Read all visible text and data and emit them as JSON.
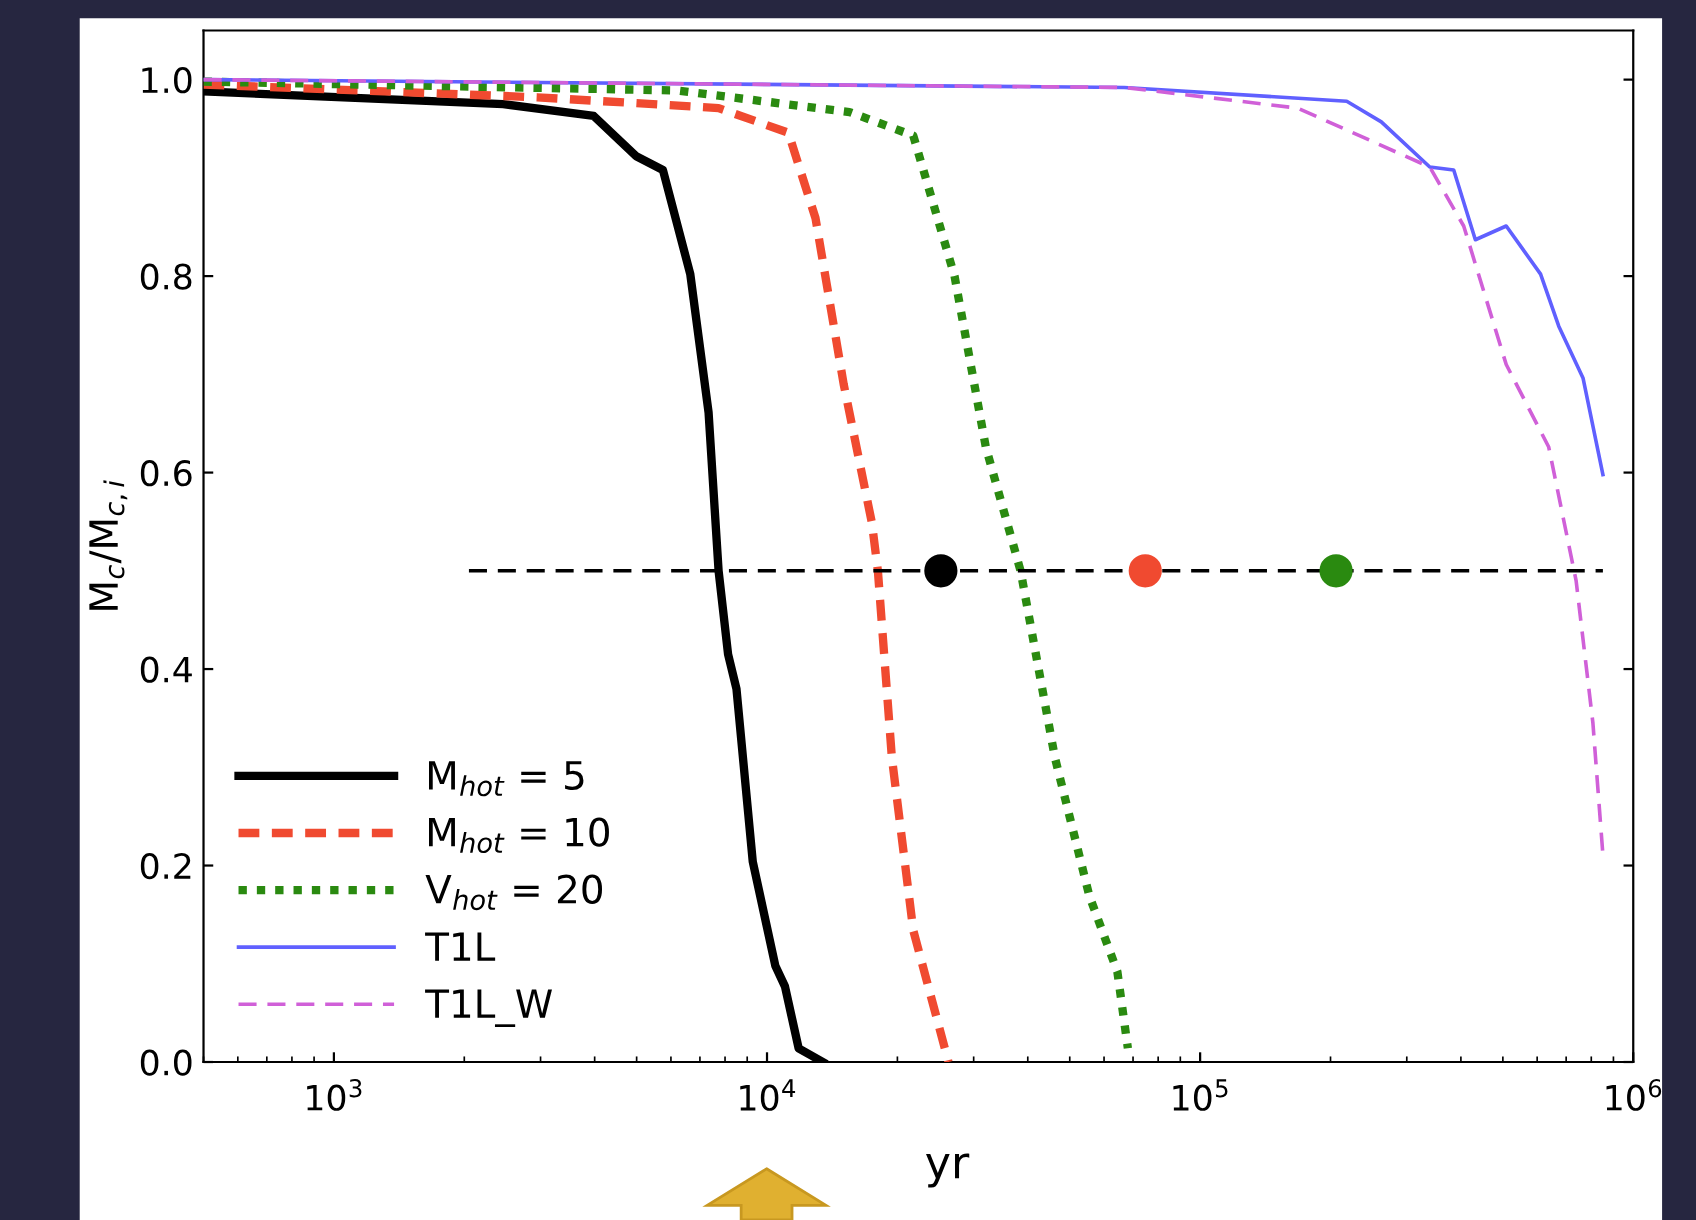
{
  "chart_data": {
    "type": "line",
    "xlabel": "yr",
    "ylabel": "M$_{c}$/M$_{c,i}$",
    "log": "x",
    "xlim": [
      500,
      1000000
    ],
    "ylim": [
      0,
      1.05
    ],
    "xticks": [
      {
        "value": 1000,
        "label": "10$^{3}$"
      },
      {
        "value": 10000,
        "label": "10$^{4}$"
      },
      {
        "value": 100000,
        "label": "10$^{5}$"
      },
      {
        "value": 1000000,
        "label": "10$^{6}$"
      }
    ],
    "yticks": [
      {
        "value": 0,
        "label": "0.0"
      },
      {
        "value": 0.2,
        "label": "0.2"
      },
      {
        "value": 0.4,
        "label": "0.4"
      },
      {
        "value": 0.6,
        "label": "0.6"
      },
      {
        "value": 0.8,
        "label": "0.8"
      },
      {
        "value": 1,
        "label": "1.0"
      }
    ],
    "grid": false,
    "legend": "bottom left",
    "series": [
      {
        "name": "M$_{hot}$ = 5",
        "color": "#000000",
        "line_style": "solid",
        "x": [
          500,
          2460,
          3980,
          4990,
          5750,
          6650,
          7330,
          7730,
          8130,
          8500,
          9270,
          10450,
          11000,
          11830,
          13460
        ],
        "values": [
          0.988,
          0.975,
          0.963,
          0.922,
          0.908,
          0.802,
          0.661,
          0.5,
          0.415,
          0.38,
          0.204,
          0.098,
          0.077,
          0.014,
          0
        ]
      },
      {
        "name": "M$_{hot}$ = 10",
        "color": "#f04a30",
        "line_style": "dashed",
        "x": [
          500,
          2950,
          7730,
          11200,
          12940,
          15030,
          17460,
          18030,
          19420,
          21760,
          26240
        ],
        "values": [
          0.995,
          0.982,
          0.971,
          0.946,
          0.859,
          0.69,
          0.549,
          0.5,
          0.31,
          0.134,
          0
        ]
      },
      {
        "name": "V$_{hot}$ = 20",
        "color": "#2a8a10",
        "line_style": "dotted",
        "x": [
          500,
          6170,
          15500,
          21760,
          27100,
          32000,
          38500,
          46200,
          55500,
          64400,
          68100
        ],
        "values": [
          0.998,
          0.989,
          0.967,
          0.943,
          0.8,
          0.626,
          0.5,
          0.31,
          0.169,
          0.092,
          0.014
        ]
      },
      {
        "name": "T1L",
        "color": "#6060ff",
        "line_style": "solid",
        "x": [
          500,
          66800,
          218000,
          262000,
          339000,
          385000,
          432000,
          509000,
          611000,
          673000,
          766000,
          851000
        ],
        "values": [
          1.0,
          0.992,
          0.978,
          0.957,
          0.911,
          0.908,
          0.837,
          0.851,
          0.802,
          0.749,
          0.696,
          0.598
        ]
      },
      {
        "name": "T1L_W",
        "color": "#d060d8",
        "line_style": "dashed",
        "x": [
          500,
          66800,
          168000,
          339000,
          406000,
          509000,
          638000,
          738000,
          807000,
          851000
        ],
        "values": [
          1.0,
          0.992,
          0.971,
          0.911,
          0.851,
          0.71,
          0.626,
          0.49,
          0.345,
          0.211
        ]
      },
      {
        "color": "#000000",
        "line_style": "dashed",
        "x": [
          2050,
          851000
        ],
        "values": [
          0.5,
          0.5
        ]
      },
      {
        "type": "scatter",
        "marker": "circle",
        "colors": [
          "#000000",
          "#f04a30",
          "#2a8a10"
        ],
        "x": [
          25200,
          74700,
          206000
        ],
        "values": [
          0.5,
          0.5,
          0.5
        ]
      }
    ]
  }
}
